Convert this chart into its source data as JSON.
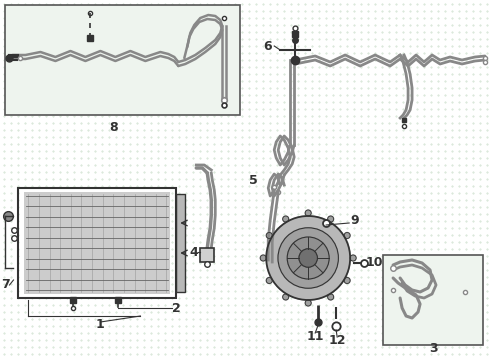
{
  "bg_color": "#ffffff",
  "dot_color": "#c8dcc8",
  "line_color": "#888888",
  "dark_color": "#333333",
  "box_bg": "#eef4ee",
  "box_edge": "#555555",
  "condenser_fill": "#cccccc",
  "condenser_line": "#666666"
}
